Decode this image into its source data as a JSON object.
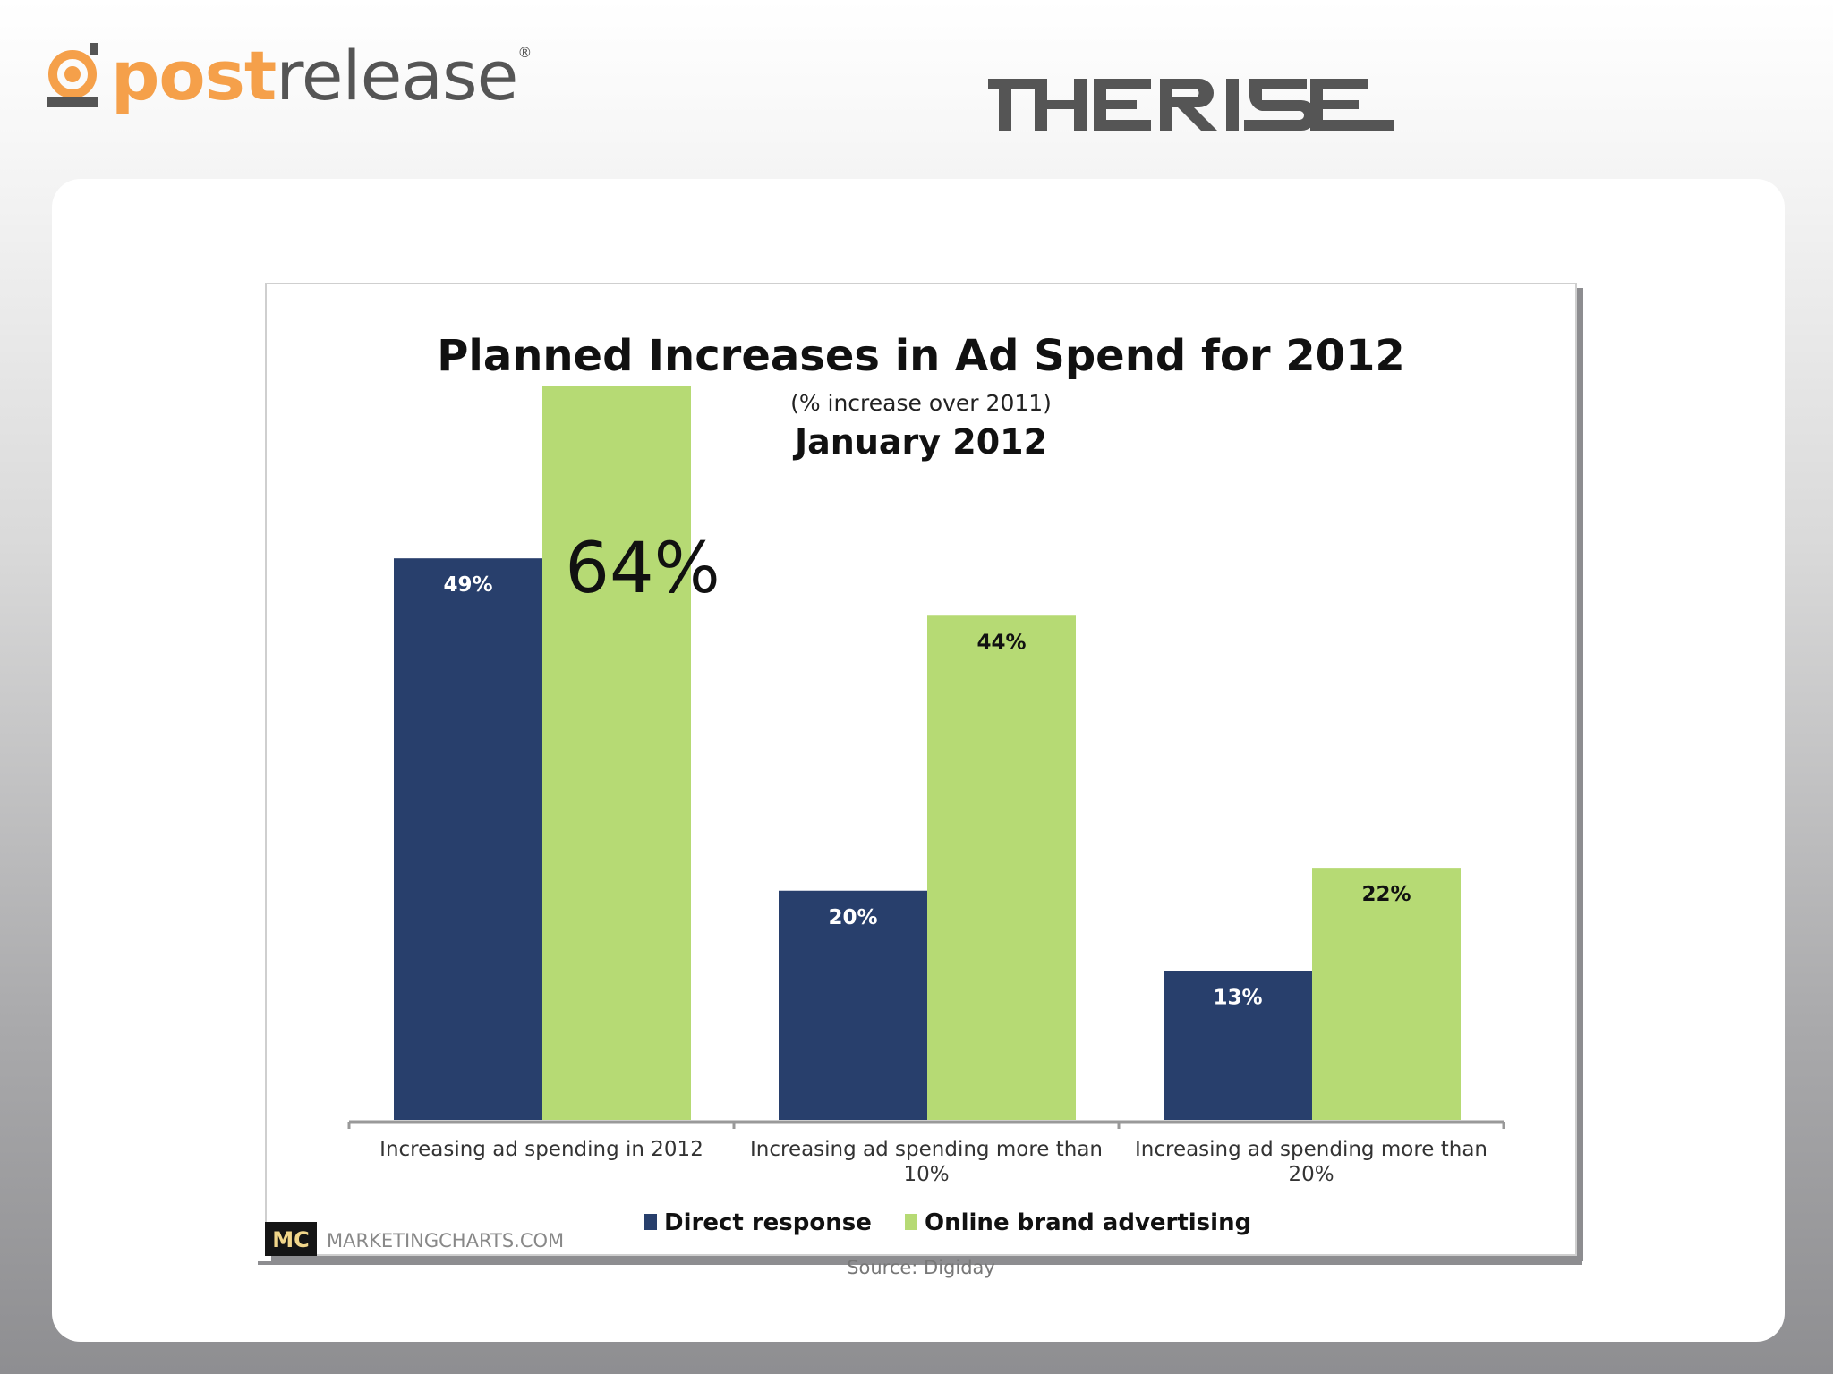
{
  "header": {
    "brand_name_part1": "post",
    "brand_name_part2": "release",
    "brand_registered": "®",
    "partner_name": "THE RISE"
  },
  "colors": {
    "brand_orange": "#f5a04a",
    "series_direct": "#283f6c",
    "series_online": "#b6da74"
  },
  "footer": {
    "mc_badge": "MC",
    "mc_site": "MARKETINGCHARTS.COM",
    "source": "Source: Digiday"
  },
  "callout": {
    "text": "64%"
  },
  "chart_data": {
    "type": "bar",
    "title": "Planned Increases in Ad Spend for 2012",
    "subtitle": "(% increase over 2011)",
    "date": "January 2012",
    "categories": [
      [
        "Increasing ad spending in 2012"
      ],
      [
        "Increasing ad spending more than",
        "10%"
      ],
      [
        "Increasing ad spending more than",
        "20%"
      ]
    ],
    "series": [
      {
        "name": "Direct response",
        "values": [
          49,
          20,
          13
        ],
        "labels": [
          "49%",
          "20%",
          "13%"
        ]
      },
      {
        "name": "Online brand advertising",
        "values": [
          64,
          44,
          22
        ],
        "labels": [
          "",
          "44%",
          "22%"
        ]
      }
    ],
    "ylim": [
      0,
      64
    ],
    "grid": false,
    "legend_position": "bottom"
  }
}
